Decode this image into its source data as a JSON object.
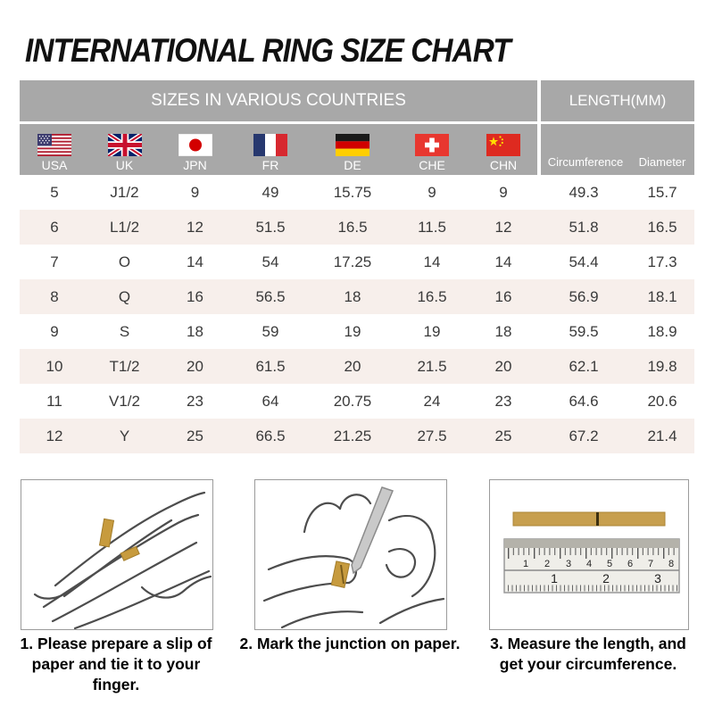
{
  "title": "INTERNATIONAL RING SIZE CHART",
  "colors": {
    "header_bg": "#a8a8a8",
    "row_alt_bg": "#f7efeb",
    "accent_gold": "#c49a3f"
  },
  "chart_data": {
    "type": "table",
    "title": "INTERNATIONAL RING SIZE CHART",
    "group_headers": {
      "sizes": "SIZES IN VARIOUS COUNTRIES",
      "length": "LENGTH(MM)"
    },
    "countries": [
      {
        "code": "USA",
        "flag": "usa-flag"
      },
      {
        "code": "UK",
        "flag": "uk-flag"
      },
      {
        "code": "JPN",
        "flag": "japan-flag"
      },
      {
        "code": "FR",
        "flag": "france-flag"
      },
      {
        "code": "DE",
        "flag": "germany-flag"
      },
      {
        "code": "CHE",
        "flag": "switzerland-flag"
      },
      {
        "code": "CHN",
        "flag": "china-flag"
      }
    ],
    "length_headers": [
      "Circumference",
      "Diameter"
    ],
    "columns": [
      "USA",
      "UK",
      "JPN",
      "FR",
      "DE",
      "CHE",
      "CHN",
      "Circumference",
      "Diameter"
    ],
    "rows": [
      [
        "5",
        "J1/2",
        "9",
        "49",
        "15.75",
        "9",
        "9",
        "49.3",
        "15.7"
      ],
      [
        "6",
        "L1/2",
        "12",
        "51.5",
        "16.5",
        "11.5",
        "12",
        "51.8",
        "16.5"
      ],
      [
        "7",
        "O",
        "14",
        "54",
        "17.25",
        "14",
        "14",
        "54.4",
        "17.3"
      ],
      [
        "8",
        "Q",
        "16",
        "56.5",
        "18",
        "16.5",
        "16",
        "56.9",
        "18.1"
      ],
      [
        "9",
        "S",
        "18",
        "59",
        "19",
        "19",
        "18",
        "59.5",
        "18.9"
      ],
      [
        "10",
        "T1/2",
        "20",
        "61.5",
        "20",
        "21.5",
        "20",
        "62.1",
        "19.8"
      ],
      [
        "11",
        "V1/2",
        "23",
        "64",
        "20.75",
        "24",
        "23",
        "64.6",
        "20.6"
      ],
      [
        "12",
        "Y",
        "25",
        "66.5",
        "21.25",
        "27.5",
        "25",
        "67.2",
        "21.4"
      ]
    ]
  },
  "instructions": [
    {
      "caption": "1. Please prepare a slip of paper and tie it to your finger.",
      "illustration": "hand-with-paper-slip"
    },
    {
      "caption": "2. Mark the junction on paper.",
      "illustration": "marking-junction-on-paper"
    },
    {
      "caption": "3. Measure the length, and get your circumference.",
      "illustration": "ruler-measuring-strip",
      "ruler_cm_labels": [
        "1",
        "2",
        "3",
        "4",
        "5",
        "6",
        "7",
        "8"
      ],
      "ruler_inch_labels": [
        "1",
        "2",
        "3"
      ]
    }
  ]
}
